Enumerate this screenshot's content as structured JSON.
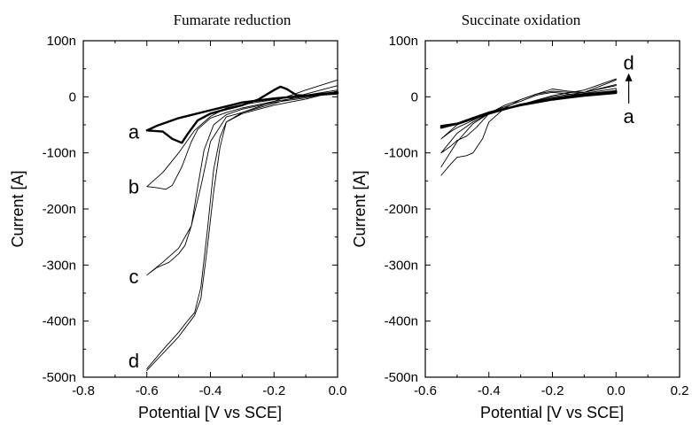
{
  "chart_data": [
    {
      "type": "line",
      "title": "Fumarate reduction",
      "xlabel": "Potential [V vs SCE]",
      "ylabel": "Current [A]",
      "xlim": [
        -0.8,
        0.0
      ],
      "ylim": [
        -500,
        100
      ],
      "y_unit": "nA",
      "x_ticks": [
        "-0.8",
        "-0.6",
        "-0.4",
        "-0.2",
        "0.0"
      ],
      "y_ticks": [
        "100n",
        "0",
        "-100n",
        "-200n",
        "-300n",
        "-400n",
        "-500n"
      ],
      "grid": false,
      "curve_labels": [
        {
          "text": "a",
          "x": -0.63,
          "y": -62
        },
        {
          "text": "b",
          "x": -0.63,
          "y": -160
        },
        {
          "text": "c",
          "x": -0.63,
          "y": -320
        },
        {
          "text": "d",
          "x": -0.63,
          "y": -470
        }
      ],
      "series": [
        {
          "label": "a",
          "bold": true,
          "forward": [
            [
              -0.6,
              -60
            ],
            [
              -0.55,
              -62
            ],
            [
              -0.52,
              -75
            ],
            [
              -0.49,
              -82
            ],
            [
              -0.47,
              -65
            ],
            [
              -0.44,
              -42
            ],
            [
              -0.4,
              -30
            ],
            [
              -0.35,
              -22
            ],
            [
              -0.3,
              -15
            ],
            [
              -0.25,
              -5
            ],
            [
              -0.2,
              12
            ],
            [
              -0.18,
              18
            ],
            [
              -0.16,
              14
            ],
            [
              -0.13,
              3
            ],
            [
              -0.1,
              2
            ],
            [
              -0.05,
              4
            ],
            [
              0.0,
              6
            ]
          ],
          "reverse": [
            [
              0.0,
              8
            ],
            [
              -0.05,
              5
            ],
            [
              -0.1,
              2
            ],
            [
              -0.2,
              -3
            ],
            [
              -0.3,
              -10
            ],
            [
              -0.4,
              -24
            ],
            [
              -0.5,
              -38
            ],
            [
              -0.57,
              -52
            ],
            [
              -0.6,
              -60
            ]
          ]
        },
        {
          "label": "b",
          "bold": false,
          "forward": [
            [
              -0.6,
              -160
            ],
            [
              -0.57,
              -162
            ],
            [
              -0.54,
              -165
            ],
            [
              -0.52,
              -158
            ],
            [
              -0.49,
              -125
            ],
            [
              -0.46,
              -80
            ],
            [
              -0.44,
              -58
            ],
            [
              -0.4,
              -38
            ],
            [
              -0.35,
              -28
            ],
            [
              -0.3,
              -20
            ],
            [
              -0.2,
              -8
            ],
            [
              -0.1,
              0
            ],
            [
              0.0,
              8
            ]
          ],
          "reverse": [
            [
              0.0,
              12
            ],
            [
              -0.1,
              3
            ],
            [
              -0.2,
              -5
            ],
            [
              -0.3,
              -14
            ],
            [
              -0.35,
              -20
            ],
            [
              -0.4,
              -35
            ],
            [
              -0.45,
              -60
            ],
            [
              -0.5,
              -100
            ],
            [
              -0.55,
              -135
            ],
            [
              -0.6,
              -160
            ]
          ]
        },
        {
          "label": "c",
          "bold": false,
          "forward": [
            [
              -0.6,
              -318
            ],
            [
              -0.57,
              -305
            ],
            [
              -0.53,
              -295
            ],
            [
              -0.5,
              -280
            ],
            [
              -0.48,
              -265
            ],
            [
              -0.46,
              -230
            ],
            [
              -0.44,
              -160
            ],
            [
              -0.42,
              -95
            ],
            [
              -0.39,
              -50
            ],
            [
              -0.35,
              -32
            ],
            [
              -0.3,
              -22
            ],
            [
              -0.2,
              -10
            ],
            [
              -0.1,
              -2
            ],
            [
              0.0,
              10
            ]
          ],
          "reverse": [
            [
              0.0,
              20
            ],
            [
              -0.1,
              5
            ],
            [
              -0.2,
              -12
            ],
            [
              -0.3,
              -28
            ],
            [
              -0.35,
              -36
            ],
            [
              -0.4,
              -80
            ],
            [
              -0.43,
              -160
            ],
            [
              -0.46,
              -230
            ],
            [
              -0.5,
              -270
            ],
            [
              -0.55,
              -295
            ],
            [
              -0.6,
              -318
            ]
          ]
        },
        {
          "label": "d",
          "bold": false,
          "forward": [
            [
              -0.6,
              -485
            ],
            [
              -0.57,
              -465
            ],
            [
              -0.54,
              -445
            ],
            [
              -0.5,
              -420
            ],
            [
              -0.47,
              -398
            ],
            [
              -0.45,
              -385
            ],
            [
              -0.43,
              -340
            ],
            [
              -0.41,
              -240
            ],
            [
              -0.39,
              -130
            ],
            [
              -0.37,
              -72
            ],
            [
              -0.35,
              -45
            ],
            [
              -0.3,
              -30
            ],
            [
              -0.2,
              -15
            ],
            [
              -0.1,
              -4
            ],
            [
              0.0,
              10
            ]
          ],
          "reverse": [
            [
              0.0,
              30
            ],
            [
              -0.1,
              12
            ],
            [
              -0.2,
              -8
            ],
            [
              -0.3,
              -28
            ],
            [
              -0.35,
              -45
            ],
            [
              -0.37,
              -90
            ],
            [
              -0.39,
              -170
            ],
            [
              -0.41,
              -270
            ],
            [
              -0.43,
              -360
            ],
            [
              -0.45,
              -390
            ],
            [
              -0.47,
              -405
            ],
            [
              -0.5,
              -428
            ],
            [
              -0.54,
              -452
            ],
            [
              -0.57,
              -470
            ],
            [
              -0.6,
              -488
            ]
          ]
        }
      ]
    },
    {
      "type": "line",
      "title": "Succinate oxidation",
      "xlabel": "Potential [V vs SCE]",
      "ylabel": "Current [A]",
      "xlim": [
        -0.6,
        0.2
      ],
      "ylim": [
        -500,
        100
      ],
      "y_unit": "nA",
      "x_ticks": [
        "-0.6",
        "-0.4",
        "-0.2",
        "0.0",
        "0.2"
      ],
      "y_ticks": [
        "100n",
        "0",
        "-100n",
        "-200n",
        "-300n",
        "-400n",
        "-500n"
      ],
      "grid": false,
      "arrow_annotation": {
        "from": "a",
        "to": "d",
        "x": 0.04,
        "y_from": -12,
        "y_to": 42
      },
      "series": [
        {
          "label": "a",
          "bold": true,
          "forward": [
            [
              -0.55,
              -52
            ],
            [
              -0.5,
              -48
            ],
            [
              -0.45,
              -38
            ],
            [
              -0.4,
              -28
            ],
            [
              -0.3,
              -15
            ],
            [
              -0.2,
              -5
            ],
            [
              -0.1,
              2
            ],
            [
              0.0,
              7
            ]
          ],
          "reverse": [
            [
              0.0,
              10
            ],
            [
              -0.1,
              4
            ],
            [
              -0.2,
              -4
            ],
            [
              -0.3,
              -14
            ],
            [
              -0.4,
              -30
            ],
            [
              -0.5,
              -48
            ],
            [
              -0.55,
              -55
            ]
          ]
        },
        {
          "label": "b",
          "bold": false,
          "forward": [
            [
              -0.55,
              -75
            ],
            [
              -0.52,
              -62
            ],
            [
              -0.5,
              -55
            ],
            [
              -0.45,
              -42
            ],
            [
              -0.4,
              -28
            ],
            [
              -0.35,
              -18
            ],
            [
              -0.3,
              -8
            ],
            [
              -0.25,
              3
            ],
            [
              -0.2,
              8
            ],
            [
              -0.15,
              5
            ],
            [
              -0.1,
              5
            ],
            [
              0.0,
              10
            ]
          ],
          "reverse": [
            [
              0.0,
              15
            ],
            [
              -0.1,
              6
            ],
            [
              -0.2,
              -2
            ],
            [
              -0.3,
              -14
            ],
            [
              -0.4,
              -30
            ],
            [
              -0.5,
              -50
            ],
            [
              -0.55,
              -75
            ]
          ]
        },
        {
          "label": "c",
          "bold": false,
          "forward": [
            [
              -0.55,
              -100
            ],
            [
              -0.52,
              -88
            ],
            [
              -0.5,
              -78
            ],
            [
              -0.47,
              -70
            ],
            [
              -0.44,
              -55
            ],
            [
              -0.4,
              -30
            ],
            [
              -0.35,
              -15
            ],
            [
              -0.3,
              -5
            ],
            [
              -0.25,
              5
            ],
            [
              -0.2,
              10
            ],
            [
              -0.15,
              8
            ],
            [
              -0.1,
              8
            ],
            [
              0.0,
              20
            ]
          ],
          "reverse": [
            [
              0.0,
              22
            ],
            [
              -0.1,
              8
            ],
            [
              -0.2,
              0
            ],
            [
              -0.3,
              -14
            ],
            [
              -0.4,
              -30
            ],
            [
              -0.45,
              -45
            ],
            [
              -0.5,
              -65
            ],
            [
              -0.55,
              -100
            ]
          ]
        },
        {
          "label": "d",
          "bold": false,
          "forward": [
            [
              -0.55,
              -140
            ],
            [
              -0.52,
              -120
            ],
            [
              -0.5,
              -108
            ],
            [
              -0.47,
              -105
            ],
            [
              -0.45,
              -100
            ],
            [
              -0.42,
              -75
            ],
            [
              -0.4,
              -45
            ],
            [
              -0.35,
              -20
            ],
            [
              -0.3,
              -5
            ],
            [
              -0.25,
              5
            ],
            [
              -0.2,
              14
            ],
            [
              -0.15,
              10
            ],
            [
              -0.1,
              8
            ],
            [
              0.0,
              30
            ]
          ],
          "reverse": [
            [
              0.0,
              32
            ],
            [
              -0.1,
              12
            ],
            [
              -0.2,
              2
            ],
            [
              -0.3,
              -14
            ],
            [
              -0.4,
              -30
            ],
            [
              -0.45,
              -48
            ],
            [
              -0.5,
              -80
            ],
            [
              -0.55,
              -125
            ]
          ]
        }
      ]
    }
  ]
}
